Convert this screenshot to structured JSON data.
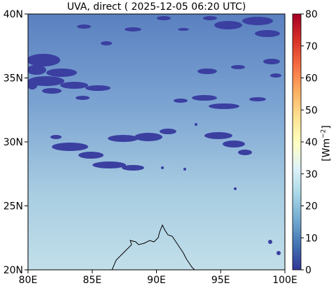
{
  "title": "UVA, direct ( 2025-12-05 06:20 UTC)",
  "map": {
    "lon_range": [
      80,
      100
    ],
    "lat_range": [
      20,
      40
    ],
    "x_ticks": [
      "80E",
      "85E",
      "90E",
      "95E",
      "100E"
    ],
    "y_ticks": [
      "40N",
      "35N",
      "30N",
      "25N",
      "20N"
    ]
  },
  "colorbar": {
    "range": [
      0,
      80
    ],
    "ticks": [
      "80",
      "70",
      "60",
      "50",
      "40",
      "30",
      "20",
      "10",
      "0"
    ],
    "label_main": "[Wm",
    "label_exp": "−2",
    "label_end": "]",
    "colormap": "RdYlBu_r",
    "colors": [
      "#313695",
      "#4575b4",
      "#74add1",
      "#abd9e9",
      "#e0f3f8",
      "#ffffbf",
      "#fee090",
      "#fdae61",
      "#f46d43",
      "#d73027",
      "#a50026"
    ]
  },
  "colors": {
    "field_low": "#5a80c0",
    "field_high": "#bcdbe8",
    "cloud": "#3a3fa0",
    "coast": "#000000"
  }
}
